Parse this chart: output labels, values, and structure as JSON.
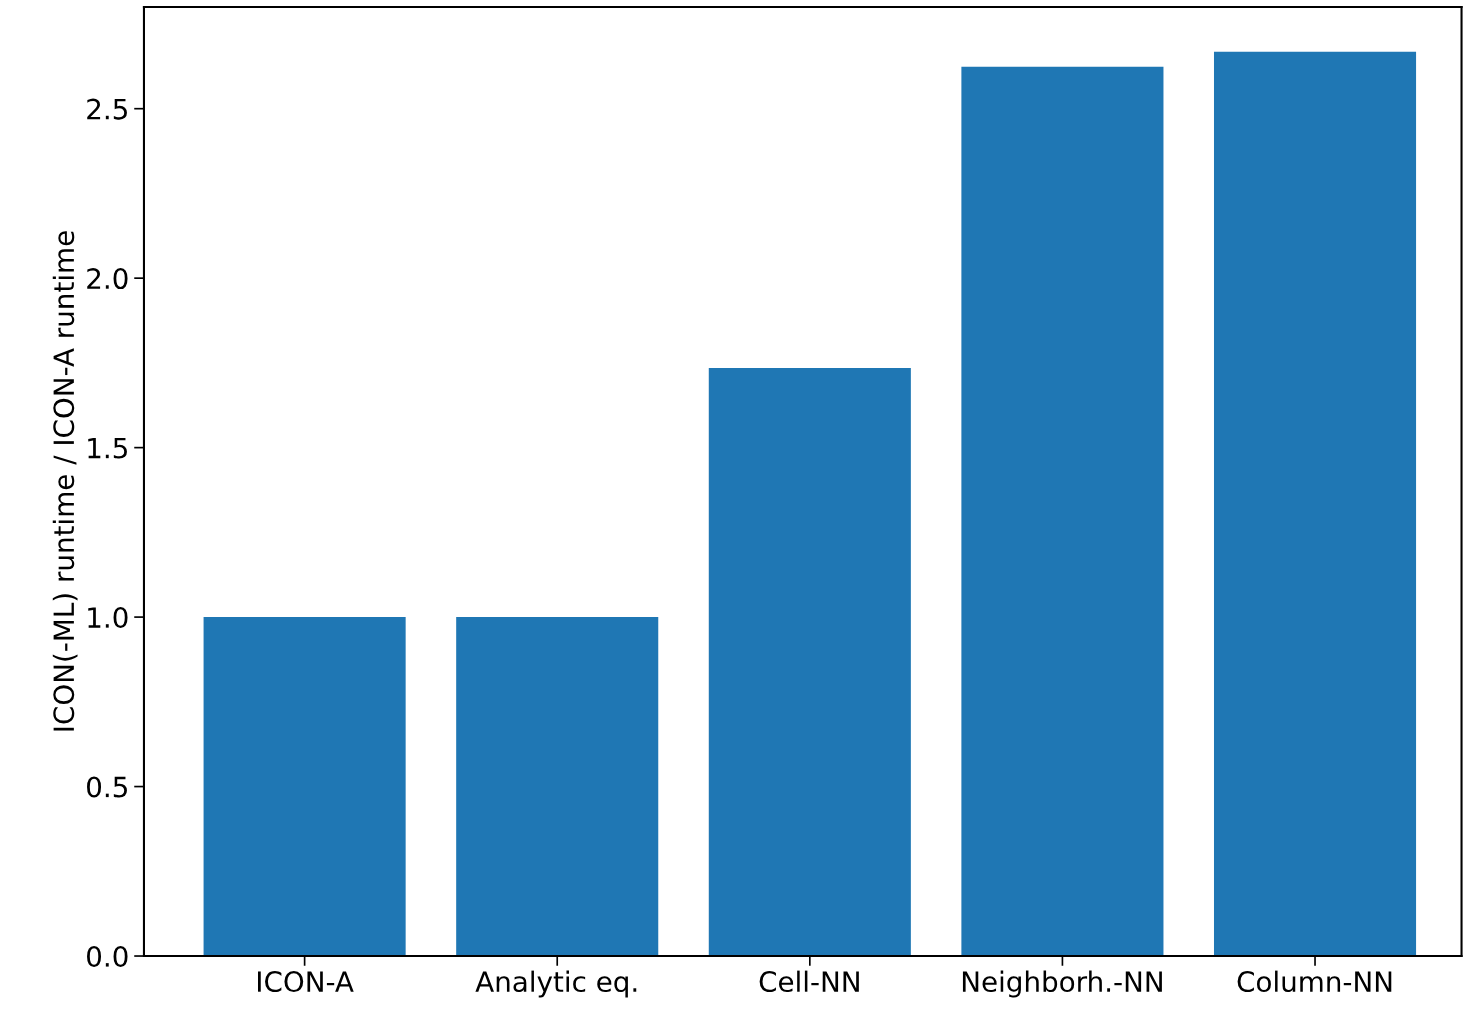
{
  "chart_data": {
    "type": "bar",
    "ylabel": "ICON(-ML) runtime / ICON-A runtime",
    "categories": [
      "ICON-A",
      "Analytic eq.",
      "Cell-NN",
      "Neighborh.-NN",
      "Column-NN"
    ],
    "values": [
      1.0,
      1.0,
      1.735,
      2.624,
      2.668
    ],
    "color": "#1f77b4",
    "ylim": [
      0,
      2.8
    ],
    "yticks": [
      {
        "value": 0,
        "label": "0.0"
      },
      0.5,
      {
        "value": 1,
        "label": "1.0"
      },
      1.5,
      {
        "value": 2,
        "label": "2.0"
      },
      2.5
    ],
    "grid": false
  }
}
